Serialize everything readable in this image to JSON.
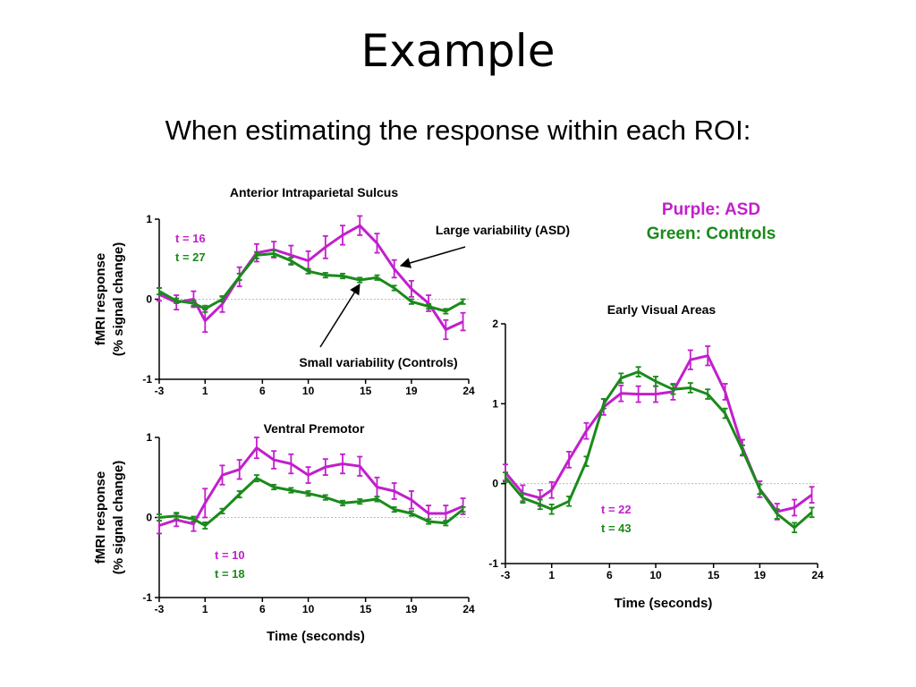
{
  "slide": {
    "title": "Example",
    "subtitle": "When estimating the response within each ROI:"
  },
  "legend": {
    "asd_label": "Purple: ASD",
    "controls_label": "Green: Controls",
    "asd_color": "#c21fcc",
    "controls_color": "#1a8a1a"
  },
  "annotations": {
    "large": "Large variability (ASD)",
    "small": "Small variability (Controls)"
  },
  "chart_data": [
    {
      "type": "line",
      "title": "Anterior Intraparietal Sulcus",
      "ylabel": [
        "fMRI response",
        "(% signal change)"
      ],
      "xlabel": "",
      "x_ticks": [
        "-3",
        "1",
        "6",
        "10",
        "15",
        "19",
        "24"
      ],
      "y_ticks": [
        "1",
        "0",
        "-1"
      ],
      "ylim": [
        -1,
        1
      ],
      "xlim": [
        -3,
        24
      ],
      "stats": [
        "t = 16",
        "t = 27"
      ],
      "series": [
        {
          "group": "asd",
          "x": [
            -3,
            -1.5,
            0,
            1,
            2.5,
            4,
            5.5,
            7,
            8.5,
            10,
            11.5,
            13,
            14.5,
            16,
            17.5,
            19,
            20.5,
            22,
            23.5
          ],
          "y": [
            0.06,
            -0.04,
            0.0,
            -0.27,
            -0.06,
            0.28,
            0.58,
            0.62,
            0.55,
            0.48,
            0.65,
            0.8,
            0.92,
            0.7,
            0.38,
            0.13,
            -0.05,
            -0.38,
            -0.28
          ],
          "err": [
            0.08,
            0.09,
            0.1,
            0.14,
            0.1,
            0.12,
            0.11,
            0.1,
            0.12,
            0.12,
            0.14,
            0.12,
            0.12,
            0.12,
            0.11,
            0.1,
            0.1,
            0.12,
            0.11
          ]
        },
        {
          "group": "controls",
          "x": [
            -3,
            -1.5,
            0,
            1,
            2.5,
            4,
            5.5,
            7,
            8.5,
            10,
            11.5,
            13,
            14.5,
            16,
            17.5,
            19,
            20.5,
            22,
            23.5
          ],
          "y": [
            0.1,
            -0.02,
            -0.05,
            -0.12,
            0.0,
            0.28,
            0.55,
            0.57,
            0.48,
            0.35,
            0.3,
            0.29,
            0.24,
            0.27,
            0.14,
            -0.03,
            -0.09,
            -0.15,
            -0.03
          ],
          "err": [
            0.04,
            0.03,
            0.03,
            0.04,
            0.03,
            0.04,
            0.04,
            0.04,
            0.04,
            0.03,
            0.03,
            0.03,
            0.03,
            0.03,
            0.03,
            0.03,
            0.03,
            0.03,
            0.03
          ]
        }
      ]
    },
    {
      "type": "line",
      "title": "Ventral Premotor",
      "ylabel": [
        "fMRI response",
        "(% signal change)"
      ],
      "xlabel": "Time (seconds)",
      "x_ticks": [
        "-3",
        "1",
        "6",
        "10",
        "15",
        "19",
        "24"
      ],
      "y_ticks": [
        "1",
        "0",
        "-1"
      ],
      "ylim": [
        -1,
        1
      ],
      "xlim": [
        -3,
        24
      ],
      "stats": [
        "t = 10",
        "t = 18"
      ],
      "series": [
        {
          "group": "asd",
          "x": [
            -3,
            -1.5,
            0,
            1,
            2.5,
            4,
            5.5,
            7,
            8.5,
            10,
            11.5,
            13,
            14.5,
            16,
            17.5,
            19,
            20.5,
            22,
            23.5
          ],
          "y": [
            -0.1,
            -0.03,
            -0.08,
            0.18,
            0.53,
            0.6,
            0.87,
            0.72,
            0.67,
            0.53,
            0.63,
            0.67,
            0.64,
            0.38,
            0.33,
            0.22,
            0.05,
            0.05,
            0.14
          ],
          "err": [
            0.1,
            0.08,
            0.09,
            0.18,
            0.12,
            0.12,
            0.13,
            0.11,
            0.12,
            0.1,
            0.1,
            0.12,
            0.12,
            0.12,
            0.1,
            0.11,
            0.1,
            0.1,
            0.1
          ]
        },
        {
          "group": "controls",
          "x": [
            -3,
            -1.5,
            0,
            1,
            2.5,
            4,
            5.5,
            7,
            8.5,
            10,
            11.5,
            13,
            14.5,
            16,
            17.5,
            19,
            20.5,
            22,
            23.5
          ],
          "y": [
            0.0,
            0.02,
            -0.02,
            -0.1,
            0.08,
            0.29,
            0.49,
            0.38,
            0.34,
            0.3,
            0.25,
            0.18,
            0.2,
            0.23,
            0.1,
            0.05,
            -0.05,
            -0.07,
            0.1
          ],
          "err": [
            0.04,
            0.04,
            0.03,
            0.04,
            0.03,
            0.04,
            0.04,
            0.03,
            0.03,
            0.03,
            0.03,
            0.03,
            0.03,
            0.03,
            0.03,
            0.03,
            0.03,
            0.03,
            0.03
          ]
        }
      ]
    },
    {
      "type": "line",
      "title": "Early Visual Areas",
      "ylabel": [],
      "xlabel": "Time (seconds)",
      "x_ticks": [
        "-3",
        "1",
        "6",
        "10",
        "15",
        "19",
        "24"
      ],
      "y_ticks": [
        "2",
        "1",
        "0",
        "-1"
      ],
      "ylim": [
        -1,
        2
      ],
      "xlim": [
        -3,
        24
      ],
      "stats": [
        "t = 22",
        "t = 43"
      ],
      "series": [
        {
          "group": "asd",
          "x": [
            -3,
            -1.5,
            0,
            1,
            2.5,
            4,
            5.5,
            7,
            8.5,
            10,
            11.5,
            13,
            14.5,
            16,
            17.5,
            19,
            20.5,
            22,
            23.5
          ],
          "y": [
            0.14,
            -0.12,
            -0.18,
            -0.08,
            0.3,
            0.66,
            0.96,
            1.13,
            1.12,
            1.12,
            1.15,
            1.55,
            1.6,
            1.15,
            0.45,
            -0.07,
            -0.35,
            -0.3,
            -0.14
          ],
          "err": [
            0.1,
            0.1,
            0.1,
            0.1,
            0.1,
            0.1,
            0.1,
            0.1,
            0.1,
            0.1,
            0.1,
            0.12,
            0.12,
            0.1,
            0.1,
            0.1,
            0.1,
            0.1,
            0.1
          ]
        },
        {
          "group": "controls",
          "x": [
            -3,
            -1.5,
            0,
            1,
            2.5,
            4,
            5.5,
            7,
            8.5,
            10,
            11.5,
            13,
            14.5,
            16,
            17.5,
            19,
            20.5,
            22,
            23.5
          ],
          "y": [
            0.08,
            -0.18,
            -0.26,
            -0.32,
            -0.22,
            0.28,
            1.0,
            1.32,
            1.4,
            1.28,
            1.18,
            1.2,
            1.12,
            0.88,
            0.42,
            -0.07,
            -0.38,
            -0.55,
            -0.36
          ],
          "err": [
            0.06,
            0.06,
            0.06,
            0.06,
            0.06,
            0.06,
            0.06,
            0.06,
            0.06,
            0.06,
            0.06,
            0.06,
            0.06,
            0.06,
            0.06,
            0.06,
            0.06,
            0.06,
            0.06
          ]
        }
      ]
    }
  ]
}
